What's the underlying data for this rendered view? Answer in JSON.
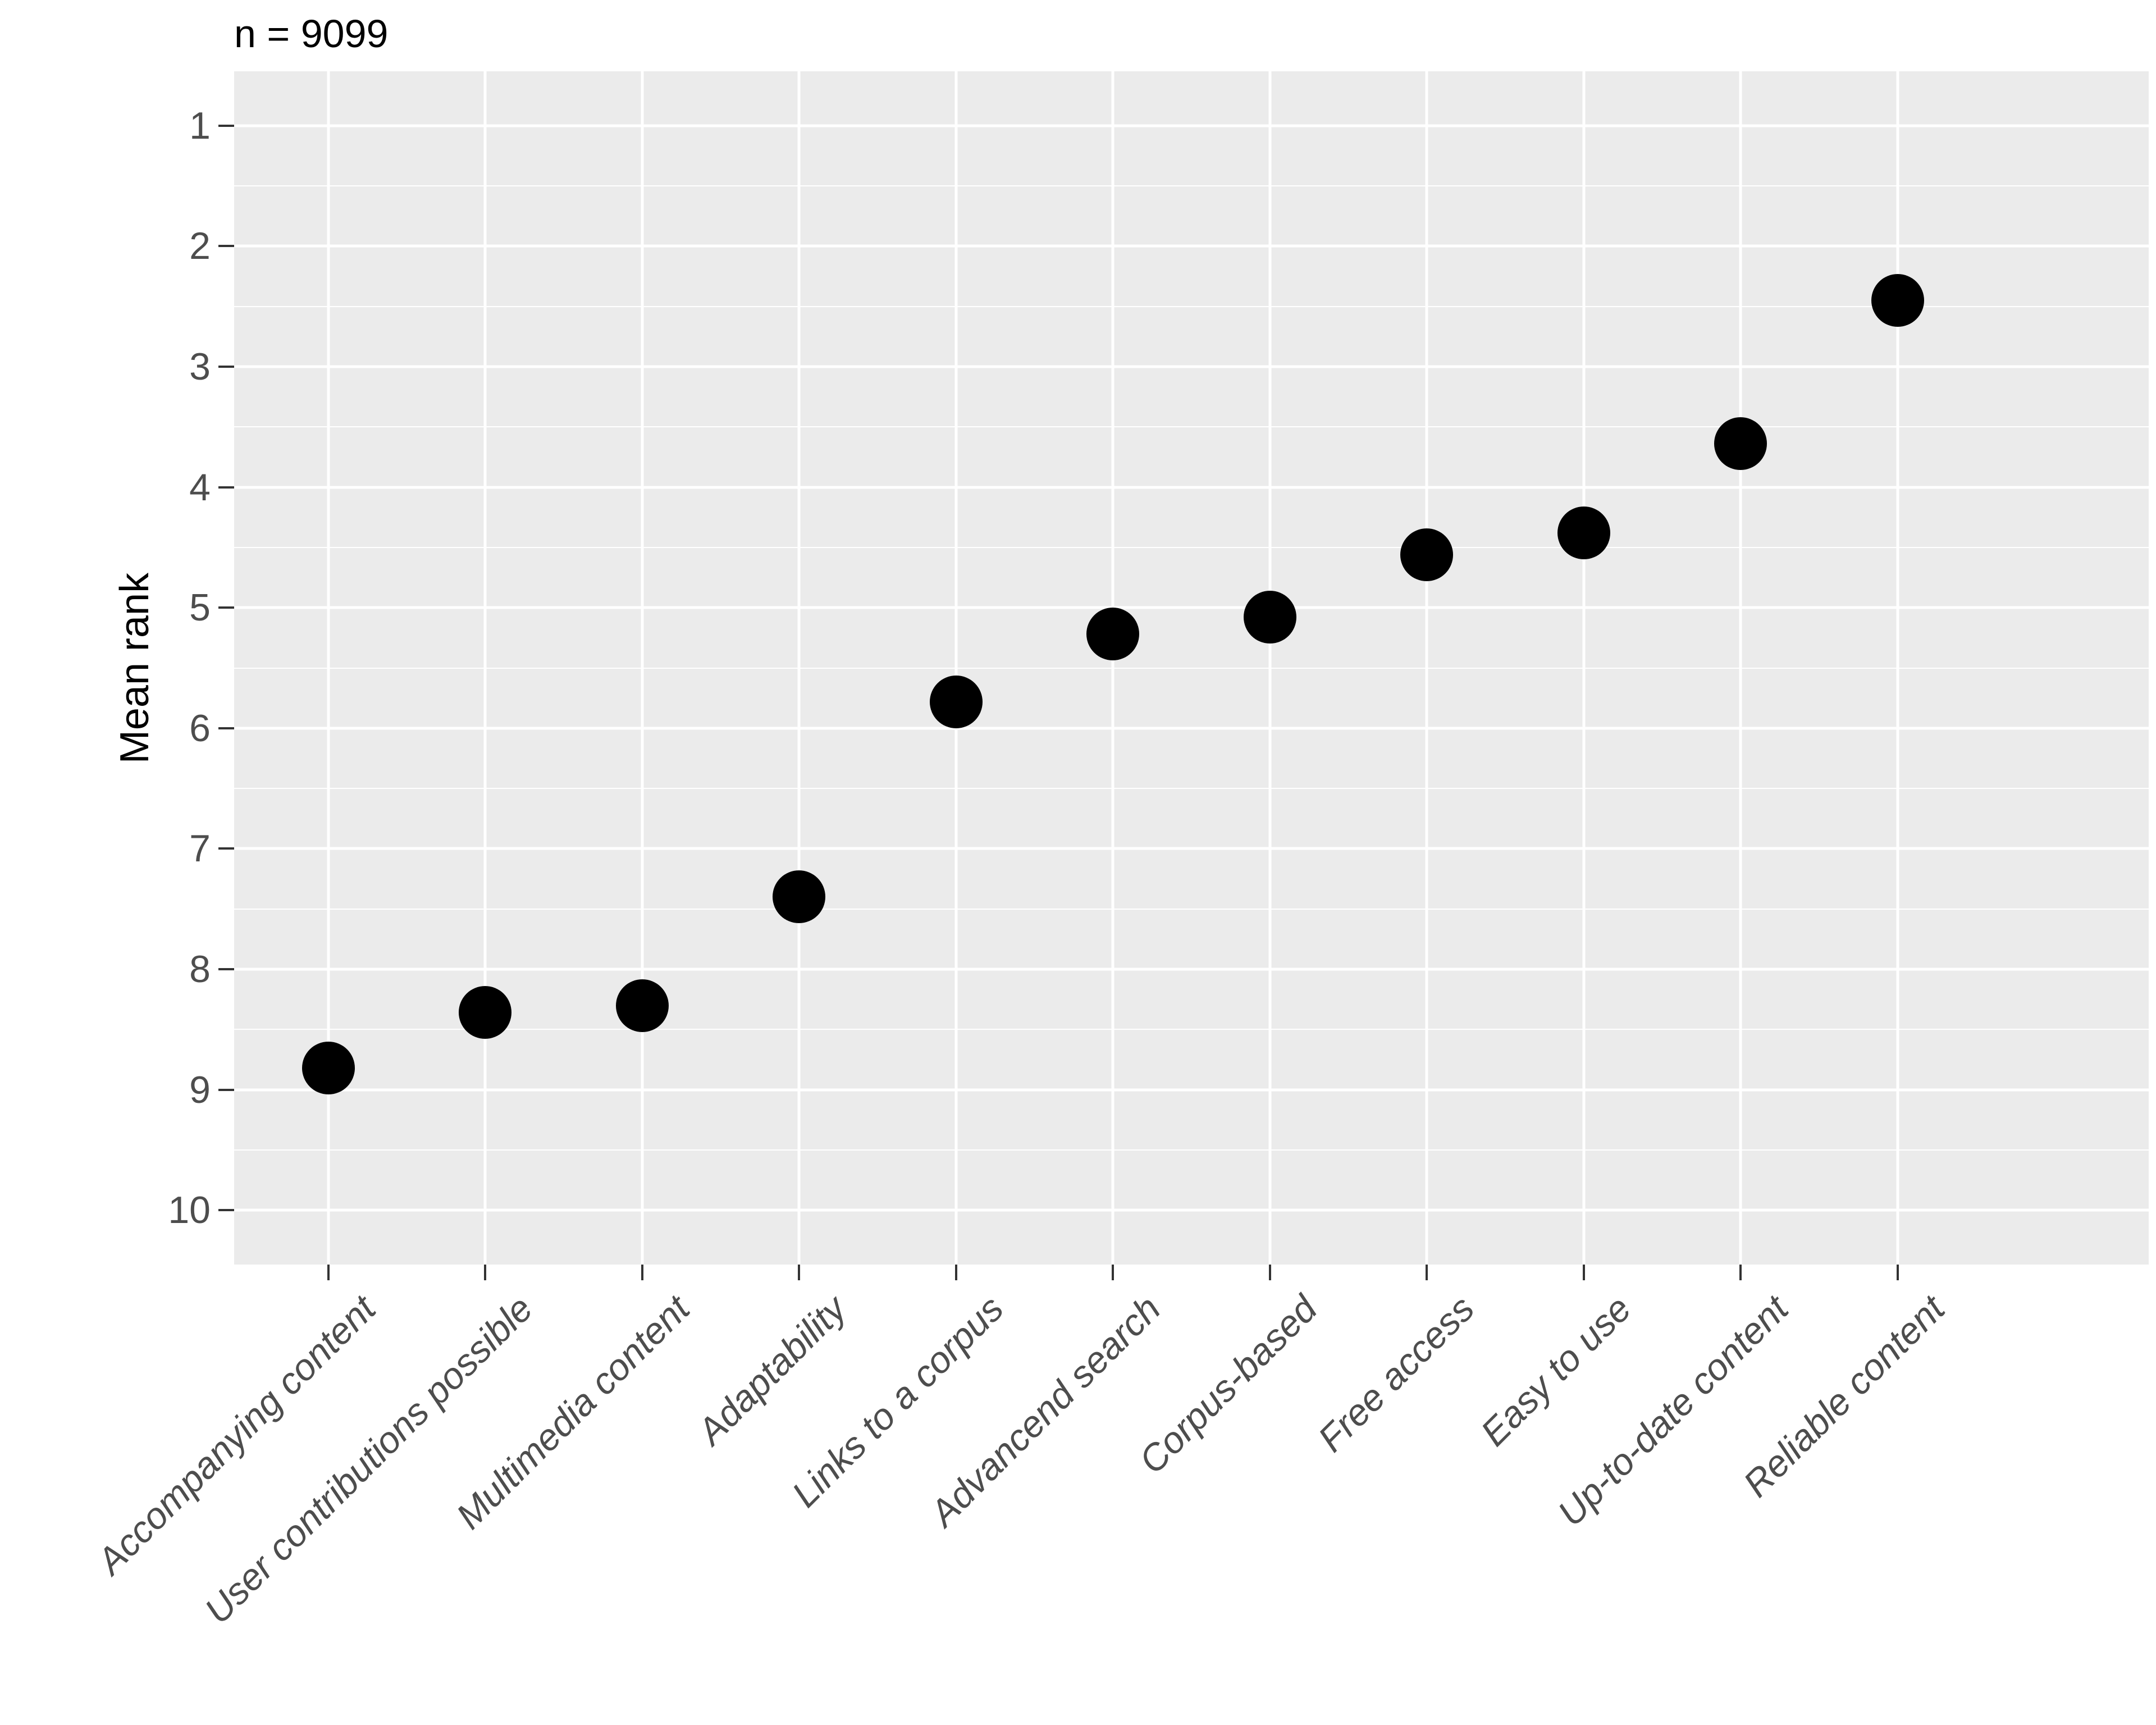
{
  "title": "n = 9099",
  "y_axis": {
    "label": "Mean rank",
    "ticks": [
      "1",
      "2",
      "3",
      "4",
      "5",
      "6",
      "7",
      "8",
      "9",
      "10"
    ]
  },
  "chart_data": {
    "type": "scatter",
    "title": "n = 9099",
    "xlabel": "",
    "ylabel": "Mean rank",
    "categories": [
      "Accompanying content",
      "User contributions possible",
      "Multimedia content",
      "Adaptability",
      "Links to a corpus",
      "Advancend search",
      "Corpus-based",
      "Free access",
      "Easy to use",
      "Up-to-date content",
      "Reliable content"
    ],
    "values": [
      8.82,
      8.36,
      8.3,
      7.4,
      5.78,
      5.22,
      5.08,
      4.56,
      4.38,
      3.64,
      2.45
    ],
    "y_ticks": [
      1,
      2,
      3,
      4,
      5,
      6,
      7,
      8,
      9,
      10
    ],
    "y_minor_ticks": [
      1.5,
      2.5,
      3.5,
      4.5,
      5.5,
      6.5,
      7.5,
      8.5,
      9.5
    ],
    "ylim_display": [
      0.55,
      10.45
    ],
    "y_axis_reversed": true,
    "grid": "major-and-minor",
    "legend": "none",
    "colors": {
      "point": "#000000",
      "panel_background": "#EBEBEB",
      "gridline": "#FFFFFF",
      "tick_label": "#4D4D4D",
      "tick_mark": "#333333",
      "title_text": "#000000"
    }
  }
}
